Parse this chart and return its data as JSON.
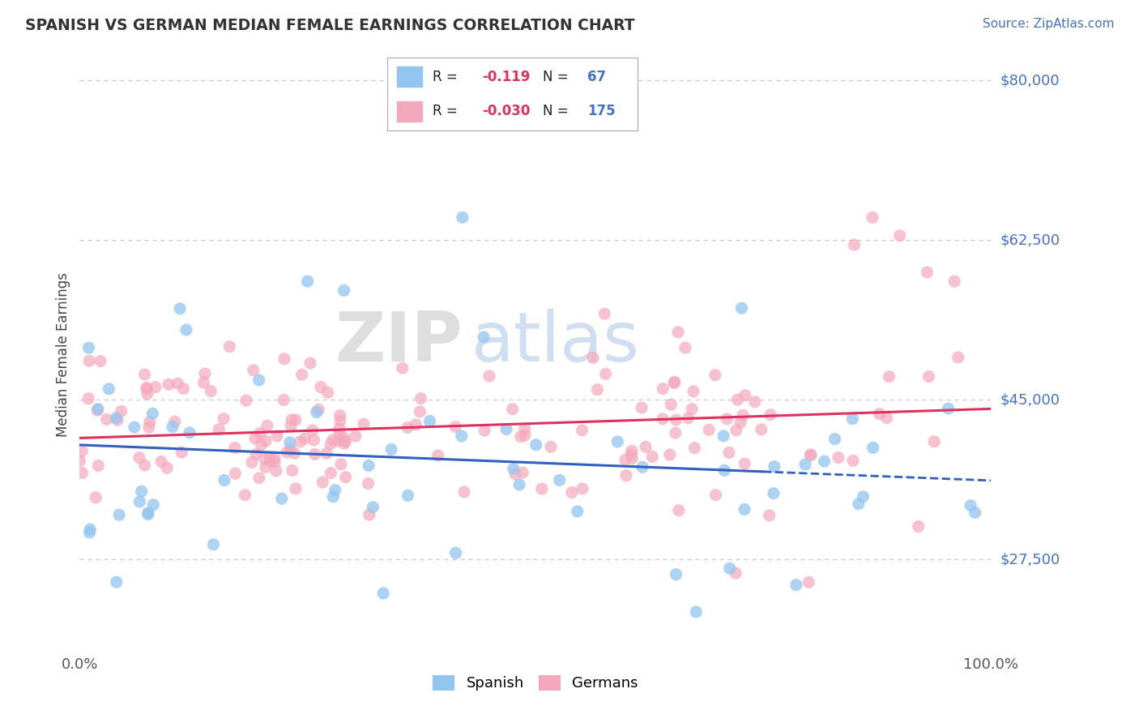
{
  "title": "SPANISH VS GERMAN MEDIAN FEMALE EARNINGS CORRELATION CHART",
  "source_text": "Source: ZipAtlas.com",
  "ylabel": "Median Female Earnings",
  "watermark_zip": "ZIP",
  "watermark_atlas": "atlas",
  "xlim": [
    0.0,
    100.0
  ],
  "ylim": [
    17500,
    82500
  ],
  "yticks": [
    27500,
    45000,
    62500,
    80000
  ],
  "ytick_labels": [
    "$27,500",
    "$45,000",
    "$62,500",
    "$80,000"
  ],
  "xticks": [
    0.0,
    100.0
  ],
  "xtick_labels": [
    "0.0%",
    "100.0%"
  ],
  "background_color": "#ffffff",
  "grid_color": "#c8c8c8",
  "spanish_color": "#92C5F0",
  "german_color": "#F5A8BC",
  "spanish_line_color": "#3060C0",
  "german_line_color": "#E03060",
  "r_spanish": -0.119,
  "n_spanish": 67,
  "r_german": -0.03,
  "n_german": 175,
  "label_color": "#4472C4",
  "r_value_color": "#E03060",
  "title_color": "#333333",
  "ylabel_color": "#444444"
}
